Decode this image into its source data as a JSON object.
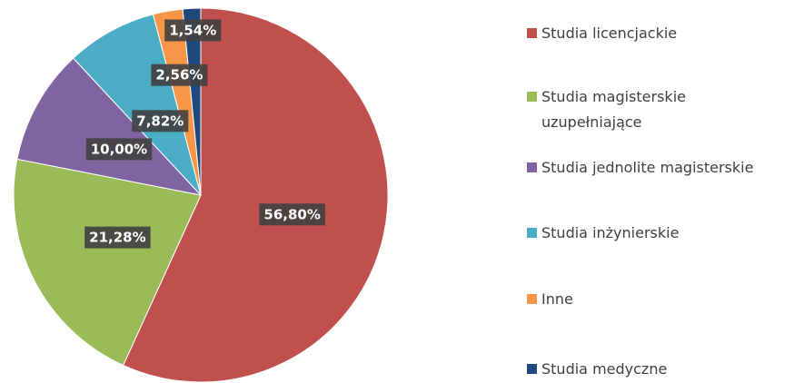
{
  "chart_data": {
    "type": "pie",
    "categories": [
      "Studia licencjackie",
      "Studia magisterskie uzupełniające",
      "Studia jednolite magisterskie",
      "Studia inżynierskie",
      "Inne",
      "Studia medyczne"
    ],
    "values": [
      56.8,
      21.28,
      10.0,
      7.82,
      2.56,
      1.54
    ],
    "value_labels": [
      "56,80%",
      "21,28%",
      "10,00%",
      "7,82%",
      "2,56%",
      "1,54%"
    ],
    "colors": [
      "#c0504d",
      "#9bbb59",
      "#8064a2",
      "#4bacc6",
      "#f79646",
      "#1f497d"
    ],
    "legend": "right"
  }
}
